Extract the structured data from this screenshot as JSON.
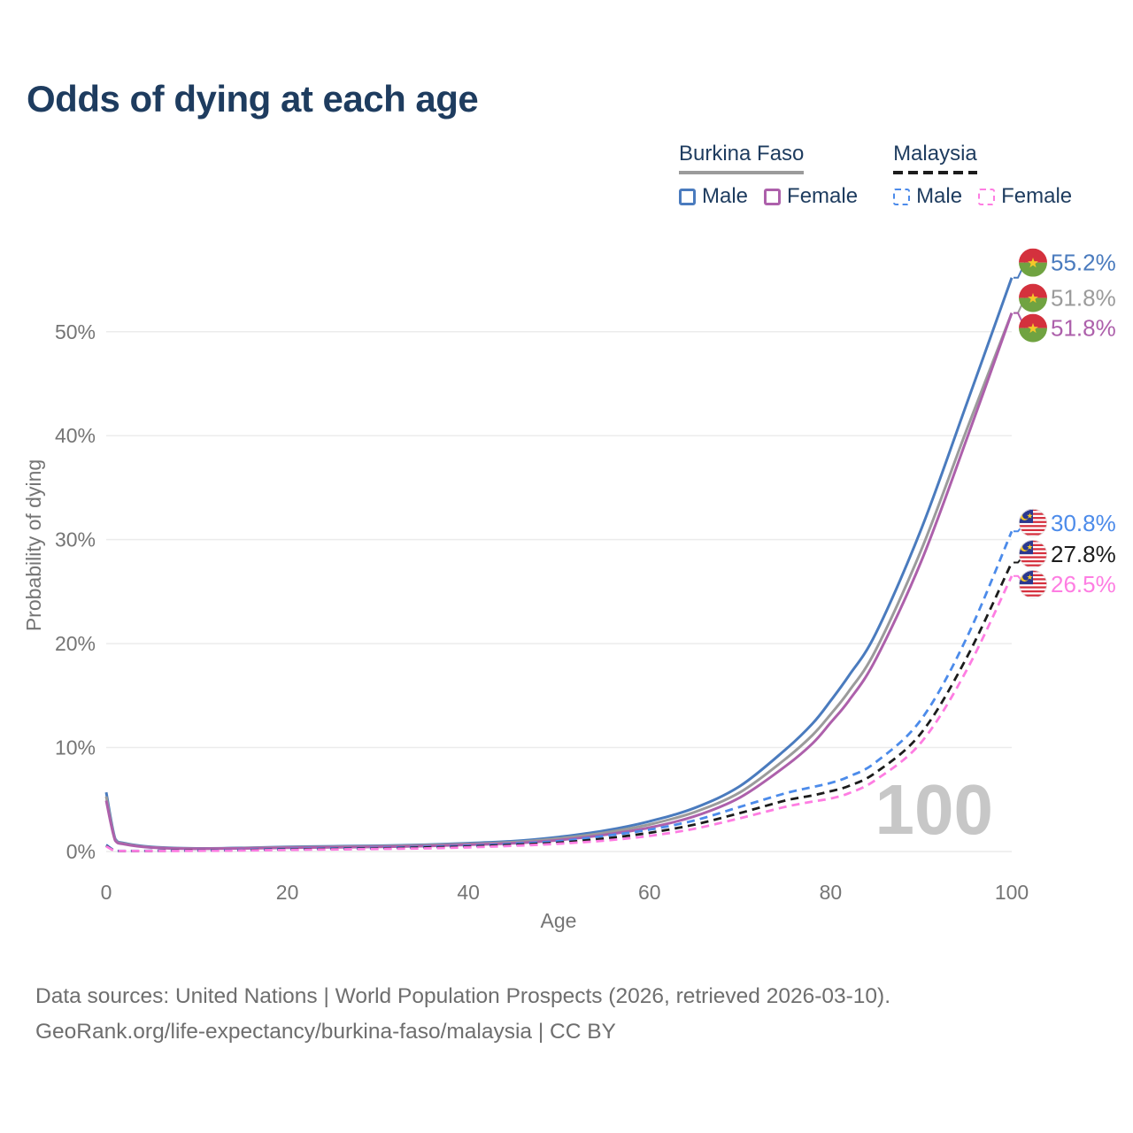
{
  "title": "Odds of dying at each age",
  "legend": {
    "groups": [
      {
        "name": "Burkina Faso",
        "style": "solid",
        "line_color": "#9b9b9b",
        "items": [
          {
            "label": "Male",
            "color": "#4a7bbe"
          },
          {
            "label": "Female",
            "color": "#ad60ab"
          }
        ]
      },
      {
        "name": "Malaysia",
        "style": "dashed",
        "line_color": "#1c1c1c",
        "items": [
          {
            "label": "Male",
            "color": "#4c8bea"
          },
          {
            "label": "Female",
            "color": "#fe7de2"
          }
        ]
      }
    ]
  },
  "chart_data": {
    "type": "line",
    "title": "Odds of dying at each age",
    "xlabel": "Age",
    "ylabel": "Probability of dying",
    "xlim": [
      0,
      100
    ],
    "ylim": [
      0,
      58
    ],
    "grid": "horizontal",
    "legend_position": "top-right",
    "watermark": "100",
    "xticks": [
      0,
      20,
      40,
      60,
      80,
      100
    ],
    "yticks": [
      0,
      10,
      20,
      30,
      40,
      50
    ],
    "ytick_suffix": "%",
    "x": [
      0,
      1,
      2,
      5,
      10,
      15,
      20,
      25,
      30,
      35,
      40,
      45,
      50,
      55,
      60,
      65,
      70,
      75,
      78,
      80,
      82,
      85,
      90,
      95,
      100
    ],
    "series": [
      {
        "id": "burkina-faso-male",
        "country": "Burkina Faso",
        "sex": "Male",
        "style": "solid",
        "color": "#4a7bbe",
        "flag": "burkina-faso",
        "end_label": "55.2%",
        "values": [
          5.7,
          1.2,
          0.8,
          0.45,
          0.3,
          0.35,
          0.45,
          0.5,
          0.55,
          0.65,
          0.8,
          1.0,
          1.4,
          2.0,
          2.9,
          4.2,
          6.3,
          9.8,
          12.3,
          14.5,
          16.9,
          21.0,
          31.0,
          43.0,
          55.2
        ]
      },
      {
        "id": "burkina-faso-both-sexes",
        "country": "Burkina Faso",
        "sex": "Both sexes",
        "style": "solid",
        "color": "#9b9b9b",
        "flag": "burkina-faso",
        "end_label": "51.8%",
        "values": [
          5.3,
          1.1,
          0.75,
          0.4,
          0.28,
          0.32,
          0.4,
          0.45,
          0.5,
          0.6,
          0.72,
          0.9,
          1.25,
          1.8,
          2.6,
          3.8,
          5.7,
          8.9,
          11.2,
          13.2,
          15.4,
          19.4,
          29.0,
          40.5,
          51.8
        ]
      },
      {
        "id": "burkina-faso-female",
        "country": "Burkina Faso",
        "sex": "Female",
        "style": "solid",
        "color": "#ad60ab",
        "flag": "burkina-faso",
        "end_label": "51.8%",
        "values": [
          4.9,
          1.05,
          0.7,
          0.38,
          0.26,
          0.3,
          0.36,
          0.4,
          0.45,
          0.52,
          0.65,
          0.8,
          1.1,
          1.6,
          2.3,
          3.4,
          5.2,
          8.2,
          10.4,
          12.4,
          14.5,
          18.5,
          27.9,
          39.6,
          51.8
        ]
      },
      {
        "id": "malaysia-male",
        "country": "Malaysia",
        "sex": "Male",
        "style": "dashed",
        "color": "#4c8bea",
        "flag": "malaysia",
        "end_label": "30.8%",
        "values": [
          0.65,
          0.07,
          0.06,
          0.07,
          0.1,
          0.15,
          0.25,
          0.3,
          0.35,
          0.45,
          0.55,
          0.75,
          1.0,
          1.5,
          2.1,
          3.0,
          4.3,
          5.6,
          6.2,
          6.6,
          7.2,
          8.6,
          12.7,
          20.5,
          30.8
        ]
      },
      {
        "id": "malaysia-both-sexes",
        "country": "Malaysia",
        "sex": "Both sexes",
        "style": "dashed",
        "color": "#1c1c1c",
        "flag": "malaysia",
        "end_label": "27.8%",
        "values": [
          0.55,
          0.06,
          0.05,
          0.06,
          0.09,
          0.12,
          0.2,
          0.25,
          0.3,
          0.38,
          0.48,
          0.65,
          0.85,
          1.25,
          1.8,
          2.6,
          3.7,
          4.9,
          5.4,
          5.8,
          6.3,
          7.6,
          11.4,
          18.6,
          27.8
        ]
      },
      {
        "id": "malaysia-female",
        "country": "Malaysia",
        "sex": "Female",
        "style": "dashed",
        "color": "#fe7de2",
        "flag": "malaysia",
        "end_label": "26.5%",
        "values": [
          0.5,
          0.05,
          0.05,
          0.05,
          0.07,
          0.1,
          0.15,
          0.2,
          0.25,
          0.3,
          0.4,
          0.55,
          0.75,
          1.05,
          1.5,
          2.2,
          3.2,
          4.3,
          4.8,
          5.1,
          5.6,
          6.9,
          10.5,
          17.4,
          26.5
        ]
      }
    ]
  },
  "icons": {
    "burkina_faso_flag": {
      "red": "#d4313d",
      "green": "#70a341",
      "star": "#f5c829"
    },
    "malaysia_flag": {
      "red": "#d5303e",
      "white": "#ffffff",
      "blue": "#2b3990",
      "yellow": "#f7c928"
    }
  },
  "colors": {
    "title_text": "#1e3c5f",
    "axis_text": "#757575",
    "gridline": "#ececec",
    "watermark": "#c7c7c7",
    "footer_text": "#6e6e6e"
  },
  "footer": {
    "line1": "Data sources: United Nations | World Population Prospects (2026, retrieved 2026-03-10).",
    "line2": "GeoRank.org/life-expectancy/burkina-faso/malaysia | CC BY"
  }
}
